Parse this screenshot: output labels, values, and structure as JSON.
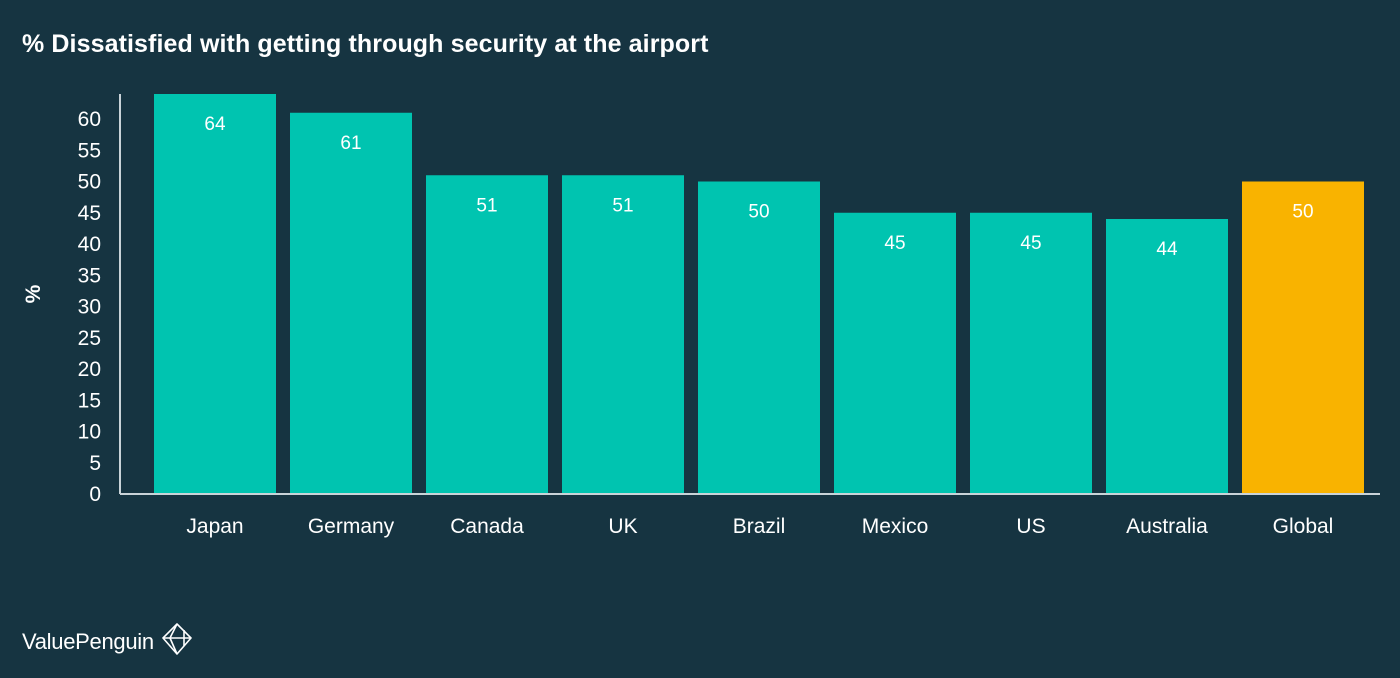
{
  "chart_data": {
    "type": "bar",
    "title": "% Dissatisfied with getting through security at the airport",
    "ylabel": "%",
    "xlabel": "",
    "ylim": [
      0,
      64
    ],
    "yticks": [
      0,
      5,
      10,
      15,
      20,
      25,
      30,
      35,
      40,
      45,
      50,
      55,
      60
    ],
    "categories": [
      "Japan",
      "Germany",
      "Canada",
      "UK",
      "Brazil",
      "Mexico",
      "US",
      "Australia",
      "Global"
    ],
    "values": [
      64,
      61,
      51,
      51,
      50,
      45,
      45,
      44,
      50
    ],
    "colors": [
      "#00c4b0",
      "#00c4b0",
      "#00c4b0",
      "#00c4b0",
      "#00c4b0",
      "#00c4b0",
      "#00c4b0",
      "#00c4b0",
      "#f9b300"
    ],
    "data_labels": true,
    "grid": false,
    "legend": "none"
  },
  "style": {
    "background": "#163441",
    "axis_color": "#c9d3d8",
    "text_color": "#ffffff"
  },
  "branding": {
    "name": "ValuePenguin",
    "icon": "valuepenguin-logo-icon"
  }
}
